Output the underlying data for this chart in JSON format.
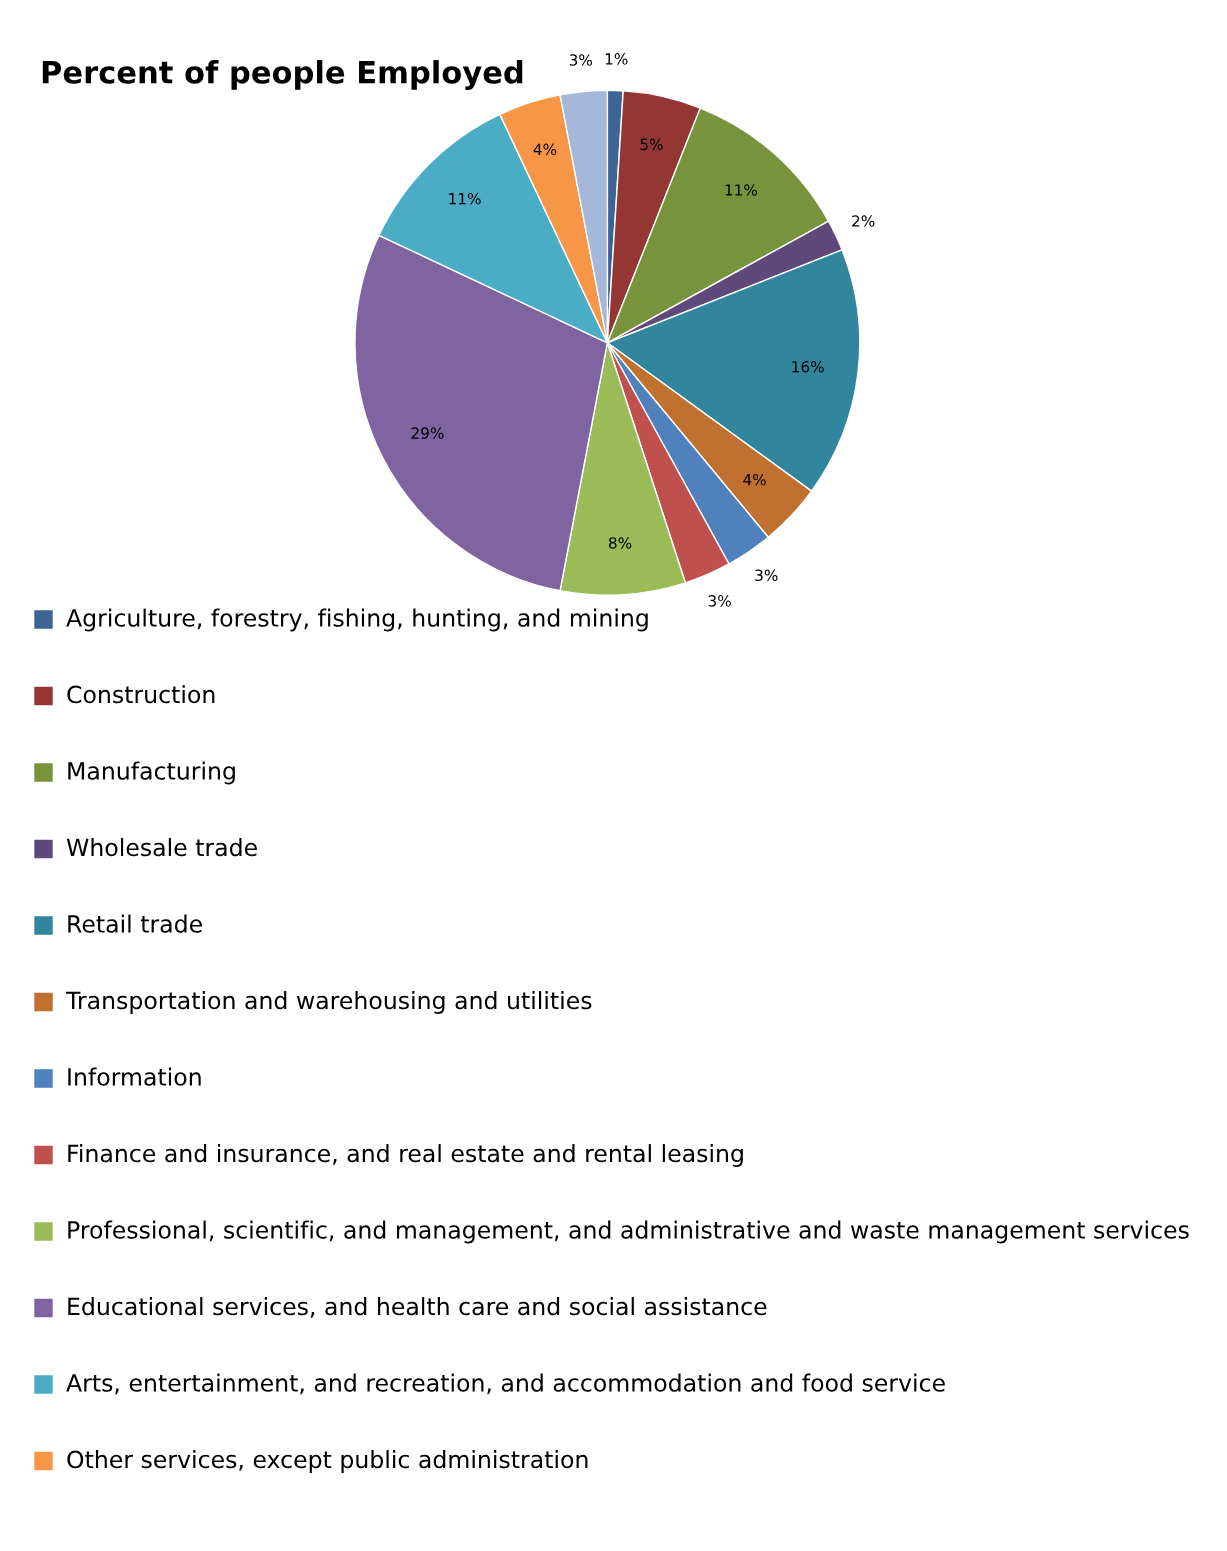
{
  "chart_data": {
    "type": "pie",
    "title": "Percent of people Employed",
    "categories": [
      "Agriculture, forestry, fishing, hunting, and mining",
      "Construction",
      "Manufacturing",
      "Wholesale trade",
      "Retail trade",
      "Transportation and warehousing and utilities",
      "Information",
      "Finance and insurance, and real estate and rental leasing",
      "Professional, scientific, and management, and administrative and waste management services",
      "Educational services, and health care and social assistance",
      "Arts, entertainment, and recreation, and accommodation and food service",
      "Other services, except public administration",
      null
    ],
    "values": [
      1,
      5,
      11,
      2,
      16,
      4,
      3,
      3,
      8,
      29,
      11,
      4,
      3
    ],
    "colors": [
      "#3c6494",
      "#943634",
      "#77933c",
      "#5f497a",
      "#31859c",
      "#c0712f",
      "#4f81bd",
      "#c0504d",
      "#9bbb59",
      "#8064a2",
      "#4bacc6",
      "#f79646",
      "#a5b8da"
    ],
    "value_labels": [
      "1%",
      "5%",
      "11%",
      "2%",
      "16%",
      "4%",
      "3%",
      "3%",
      "8%",
      "29%",
      "11%",
      "4%",
      "3%"
    ],
    "legend": "bottom"
  }
}
